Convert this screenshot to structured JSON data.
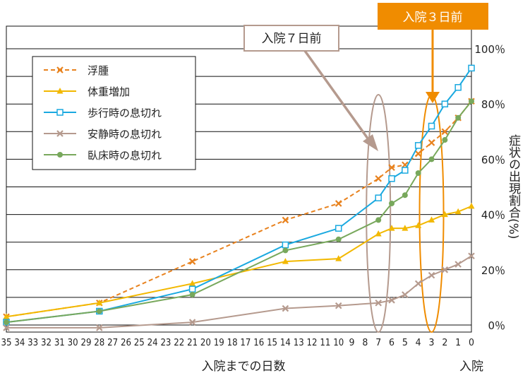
{
  "chart_data": {
    "type": "line",
    "xlabel": "入院までの日数",
    "x_end_label": "入院",
    "ylabel": "症状の出現割合(%)",
    "ylim": [
      0,
      100
    ],
    "yticks": [
      0,
      20,
      40,
      60,
      80,
      100
    ],
    "ytick_labels": [
      "0％",
      "20％",
      "40％",
      "60％",
      "80％",
      "100％"
    ],
    "xlim": [
      35,
      0
    ],
    "x_reversed": true,
    "xticks": [
      35,
      34,
      33,
      32,
      31,
      30,
      29,
      28,
      27,
      26,
      25,
      24,
      23,
      22,
      21,
      20,
      19,
      18,
      17,
      16,
      15,
      14,
      13,
      12,
      11,
      10,
      9,
      8,
      7,
      6,
      5,
      4,
      3,
      2,
      1,
      0
    ],
    "grid": true,
    "legend_position": "top-left",
    "series": [
      {
        "name": "浮腫",
        "color": "#e8821e",
        "dashed": true,
        "marker": "x",
        "x": [
          35,
          28,
          21,
          14,
          10,
          7,
          6,
          5,
          4,
          3,
          2,
          1,
          0
        ],
        "y": [
          3,
          8,
          23,
          38,
          44,
          53,
          57,
          58,
          62,
          66,
          70,
          75,
          81
        ]
      },
      {
        "name": "体重増加",
        "color": "#f2b800",
        "dashed": false,
        "marker": "triangle",
        "x": [
          35,
          28,
          21,
          14,
          10,
          7,
          6,
          5,
          4,
          3,
          2,
          1,
          0
        ],
        "y": [
          3,
          8,
          15,
          23,
          24,
          33,
          35,
          35,
          36,
          38,
          40,
          41,
          43
        ]
      },
      {
        "name": "歩行時の息切れ",
        "color": "#1aa9e0",
        "dashed": false,
        "marker": "square",
        "x": [
          35,
          28,
          21,
          14,
          10,
          7,
          6,
          5,
          4,
          3,
          2,
          1,
          0
        ],
        "y": [
          1,
          5,
          13,
          29,
          35,
          46,
          53,
          56,
          65,
          72,
          80,
          86,
          93
        ]
      },
      {
        "name": "安静時の息切れ",
        "color": "#b59a8e",
        "dashed": false,
        "marker": "x",
        "x": [
          35,
          28,
          21,
          14,
          10,
          7,
          6,
          5,
          4,
          3,
          2,
          1,
          0
        ],
        "y": [
          -1,
          -1,
          1,
          6,
          7,
          8,
          9,
          11,
          15,
          18,
          20,
          22,
          25
        ]
      },
      {
        "name": "臥床時の息切れ",
        "color": "#78a85c",
        "dashed": false,
        "marker": "circle",
        "x": [
          35,
          28,
          21,
          14,
          10,
          7,
          6,
          5,
          4,
          3,
          2,
          1,
          0
        ],
        "y": [
          1,
          5,
          11,
          27,
          31,
          38,
          44,
          47,
          55,
          60,
          67,
          75,
          81
        ]
      }
    ],
    "annotations": [
      {
        "label": "入院７日前",
        "x": 7,
        "color": "#b59a8e",
        "style": "outline"
      },
      {
        "label": "入院３日前",
        "x": 3,
        "color": "#f08c00",
        "style": "filled"
      }
    ]
  }
}
